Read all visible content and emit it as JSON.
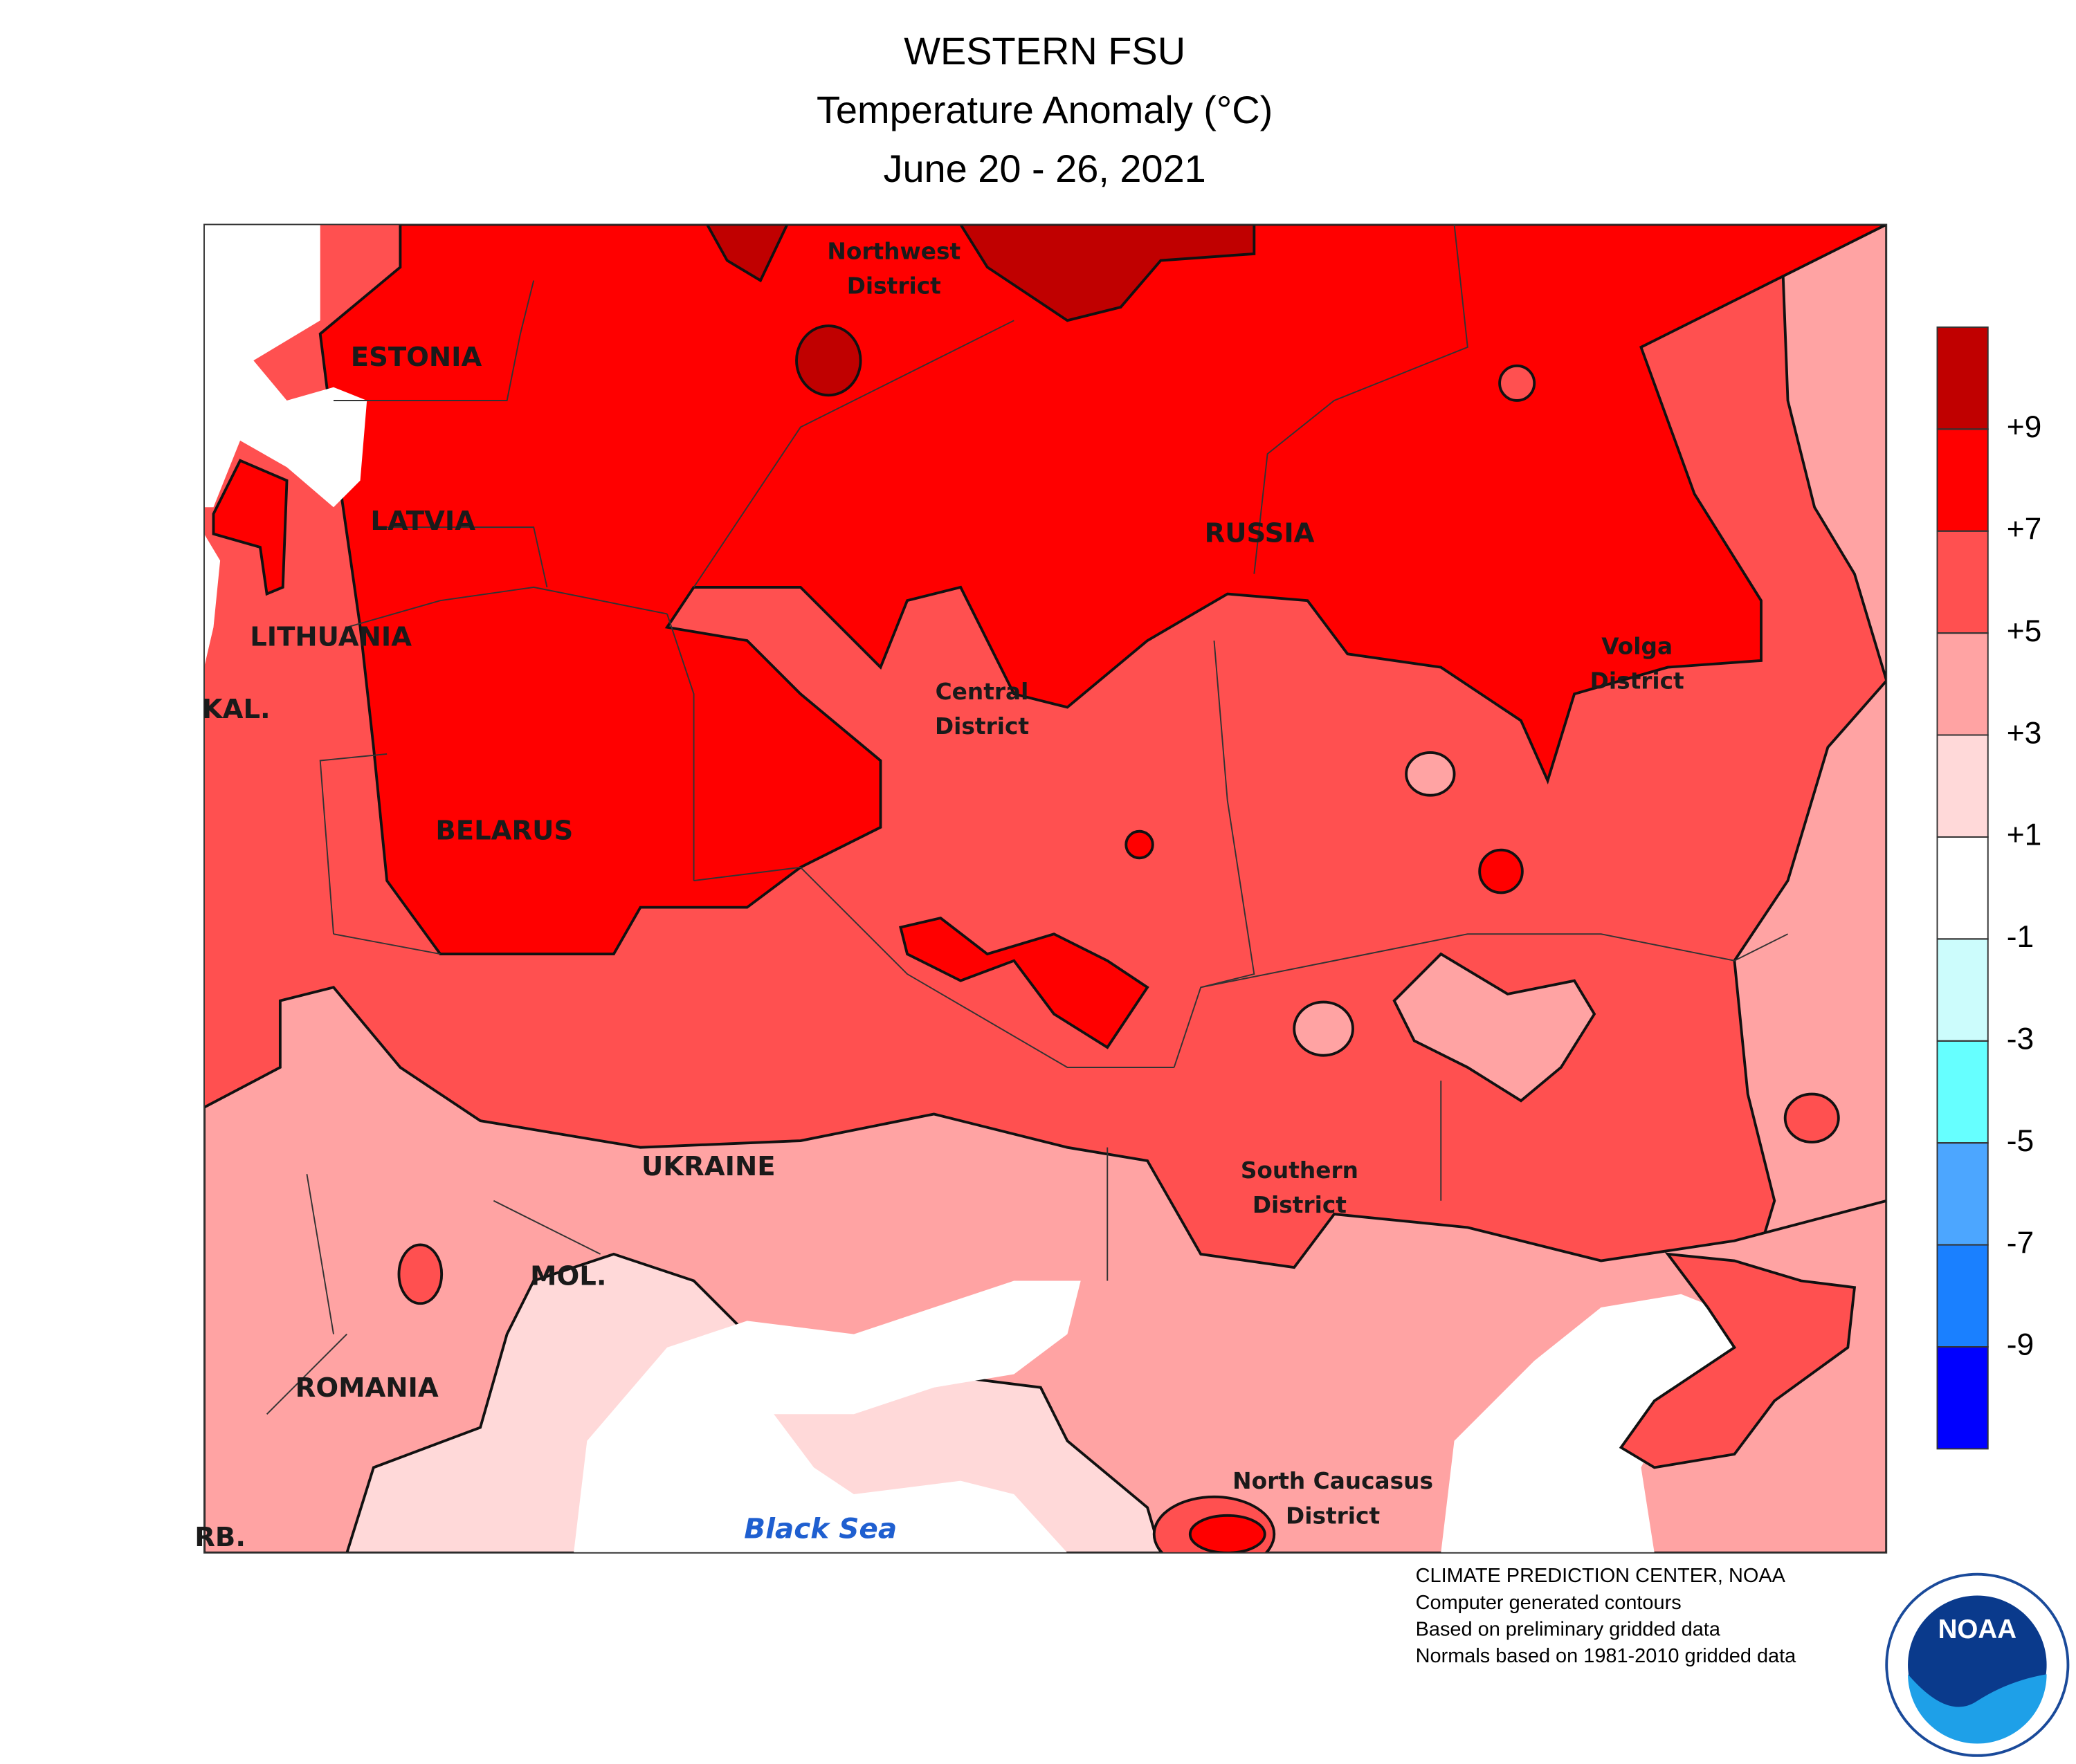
{
  "title": [
    "WESTERN FSU",
    "Temperature Anomaly (°C)",
    "June 20 - 26, 2021"
  ],
  "places": [
    "ESTONIA",
    "LATVIA",
    "LITHUANIA",
    "KAL.",
    "BELARUS",
    "RUSSIA",
    "UKRAINE",
    "MOL.",
    "ROMANIA",
    "RB."
  ],
  "districts": [
    [
      "Northwest",
      "District"
    ],
    [
      "Central",
      "District"
    ],
    [
      "Volga",
      "District"
    ],
    [
      "Southern",
      "District"
    ],
    [
      "North Caucasus",
      "District"
    ]
  ],
  "sea": "Black Sea",
  "legend": {
    "colors": [
      "#c00000",
      "#ff0000",
      "#ff5050",
      "#ffa3a3",
      "#ffd9d9",
      "#ffffff",
      "#ccfcfc",
      "#66ffff",
      "#4ca6ff",
      "#1a80ff",
      "#0000ff"
    ],
    "ticks": [
      {
        "value": 9,
        "label": "+9"
      },
      {
        "value": 7,
        "label": "+7"
      },
      {
        "value": 5,
        "label": "+5"
      },
      {
        "value": 3,
        "label": "+3"
      },
      {
        "value": 1,
        "label": "+1"
      },
      -1,
      -3,
      -5,
      -7,
      -9
    ]
  },
  "footer": [
    "CLIMATE PREDICTION CENTER, NOAA",
    "Computer generated contours",
    "Based on preliminary gridded data",
    "Normals based on 1981-2010 gridded data"
  ],
  "logo": "NOAA"
}
